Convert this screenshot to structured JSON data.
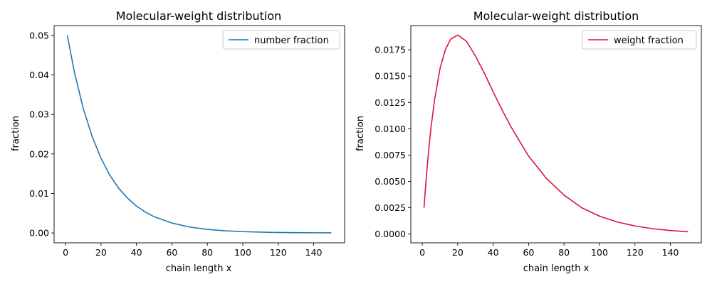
{
  "chart_data": [
    {
      "type": "line",
      "title": "Molecular-weight distribution",
      "xlabel": "chain length x",
      "ylabel": "fraction",
      "xlim": [
        -6.45,
        157.45
      ],
      "ylim": [
        -0.0025,
        0.0525
      ],
      "xticks": [
        0,
        20,
        40,
        60,
        80,
        100,
        120,
        140
      ],
      "xtick_labels": [
        "0",
        "20",
        "40",
        "60",
        "80",
        "100",
        "120",
        "140"
      ],
      "yticks": [
        0.0,
        0.01,
        0.02,
        0.03,
        0.04,
        0.05
      ],
      "ytick_labels": [
        "0.00",
        "0.01",
        "0.02",
        "0.03",
        "0.04",
        "0.05"
      ],
      "legend": "top-right",
      "grid": false,
      "series": [
        {
          "name": "number fraction",
          "color": "#1f77b4",
          "x": [
            1,
            5,
            10,
            15,
            20,
            25,
            30,
            35,
            40,
            45,
            50,
            60,
            70,
            80,
            90,
            100,
            110,
            120,
            130,
            140,
            150
          ],
          "y": [
            0.05,
            0.0407,
            0.0315,
            0.0244,
            0.0189,
            0.0146,
            0.0113,
            0.0088,
            0.0068,
            0.0053,
            0.0041,
            0.0025,
            0.0015,
            0.0009,
            0.00055,
            0.00033,
            0.0002,
            0.00012,
            7e-05,
            4e-05,
            3e-05
          ]
        }
      ]
    },
    {
      "type": "line",
      "title": "Molecular-weight distribution",
      "xlabel": "chain length x",
      "ylabel": "fraction",
      "xlim": [
        -6.45,
        157.45
      ],
      "ylim": [
        -0.00083,
        0.0198
      ],
      "xticks": [
        0,
        20,
        40,
        60,
        80,
        100,
        120,
        140
      ],
      "xtick_labels": [
        "0",
        "20",
        "40",
        "60",
        "80",
        "100",
        "120",
        "140"
      ],
      "yticks": [
        0.0,
        0.0025,
        0.005,
        0.0075,
        0.01,
        0.0125,
        0.015,
        0.0175
      ],
      "ytick_labels": [
        "0.0000",
        "0.0025",
        "0.0050",
        "0.0075",
        "0.0100",
        "0.0125",
        "0.0150",
        "0.0175"
      ],
      "legend": "top-right",
      "grid": false,
      "series": [
        {
          "name": "weight fraction",
          "color": "#dc143c",
          "x": [
            1,
            2,
            3,
            4,
            5,
            7,
            10,
            13,
            16,
            20,
            25,
            30,
            35,
            40,
            45,
            50,
            60,
            70,
            80,
            90,
            100,
            110,
            120,
            130,
            140,
            150
          ],
          "y": [
            0.0025,
            0.0048,
            0.0068,
            0.0086,
            0.0102,
            0.0128,
            0.0157,
            0.0175,
            0.0185,
            0.0189,
            0.0183,
            0.0169,
            0.0153,
            0.0135,
            0.0118,
            0.0102,
            0.0074,
            0.0053,
            0.0037,
            0.0025,
            0.0017,
            0.00115,
            0.00077,
            0.00051,
            0.00034,
            0.00022
          ]
        }
      ]
    }
  ]
}
